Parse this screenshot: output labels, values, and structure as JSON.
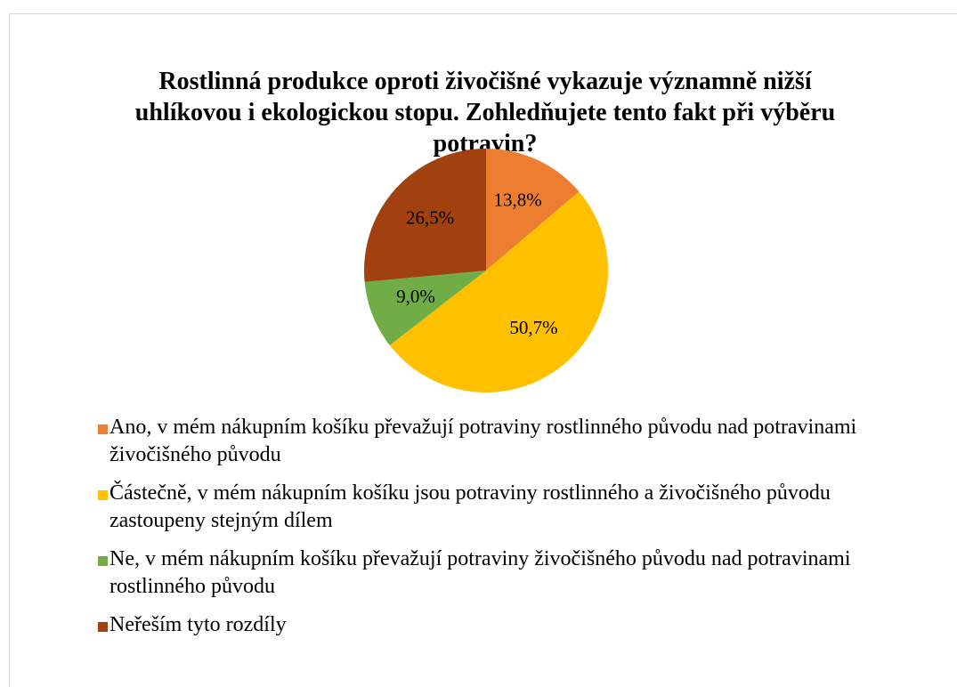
{
  "chart_data": {
    "type": "pie",
    "title": "Rostlinná produkce oproti živočišné vykazuje významně nižší uhlíkovou i ekologickou stopu. Zohledňujete tento fakt při výběru potravin?",
    "categories": [
      "Ano, v mém nákupním košíku převažují potraviny rostlinného původu nad potravinami živočišného původu",
      "Částečně, v mém nákupním košíku jsou potraviny rostlinného a živočišného původu zastoupeny stejným dílem",
      "Ne, v mém nákupním košíku převažují potraviny živočišného původu nad potravinami rostlinného původu",
      "Neřeším tyto rozdíly"
    ],
    "values": [
      13.8,
      50.7,
      9.0,
      26.5
    ],
    "value_labels": [
      "13,8%",
      "50,7%",
      "9,0%",
      "26,5%"
    ],
    "colors": [
      "#ed7d31",
      "#ffc000",
      "#70ad47",
      "#a0410f"
    ]
  }
}
